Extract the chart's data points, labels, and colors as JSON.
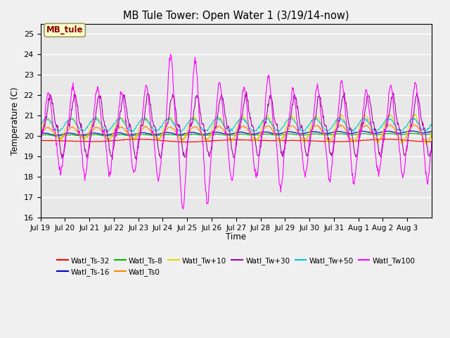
{
  "title": "MB Tule Tower: Open Water 1 (3/19/14-now)",
  "xlabel": "Time",
  "ylabel": "Temperature (C)",
  "ylim": [
    16.0,
    25.5
  ],
  "yticks": [
    16.0,
    17.0,
    18.0,
    19.0,
    20.0,
    21.0,
    22.0,
    23.0,
    24.0,
    25.0
  ],
  "xtick_labels": [
    "Jul 19",
    "Jul 20",
    "Jul 21",
    "Jul 22",
    "Jul 23",
    "Jul 24",
    "Jul 25",
    "Jul 26",
    "Jul 27",
    "Jul 28",
    "Jul 29",
    "Jul 30",
    "Jul 31",
    "Aug 1",
    "Aug 2",
    "Aug 3"
  ],
  "colors": {
    "Watl_Ts-32": "#ff0000",
    "Watl_Ts-16": "#0000cc",
    "Watl_Ts-8": "#00bb00",
    "Watl_Ts0": "#ff8800",
    "Watl_Tw+10": "#dddd00",
    "Watl_Tw+30": "#aa00aa",
    "Watl_Tw+50": "#00cccc",
    "Watl_Tw100": "#ff00ff"
  },
  "annotation_text": "MB_tule",
  "annotation_color": "#8b0000",
  "annotation_bg": "#ffffcc",
  "annotation_border": "#999966",
  "plot_bg": "#e8e8e8",
  "fig_bg": "#f0f0f0",
  "grid_color": "#ffffff"
}
